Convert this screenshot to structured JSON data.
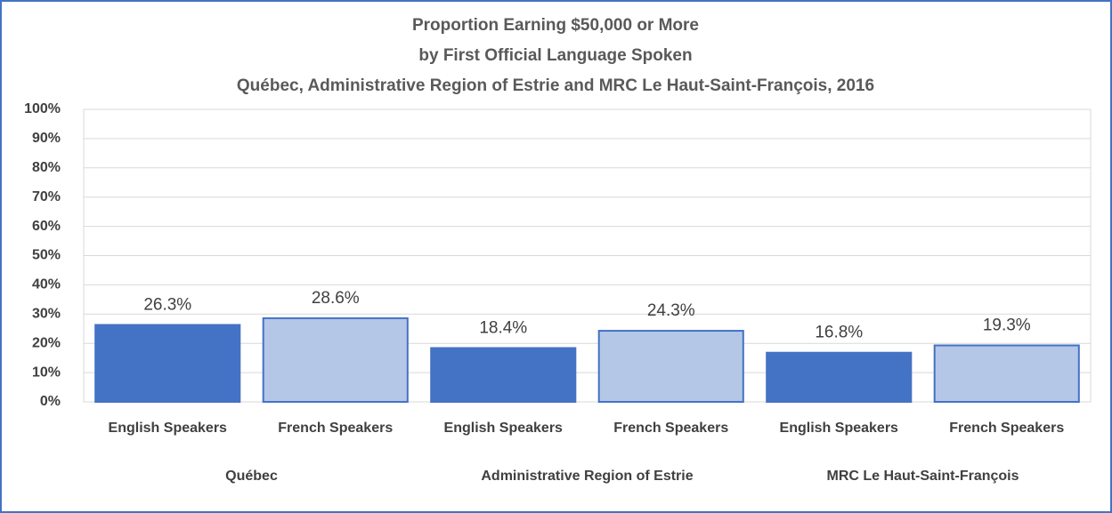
{
  "chart_data": {
    "type": "bar",
    "title": [
      "Proportion Earning $50,000 or More",
      "by First Official Language Spoken",
      "Québec, Administrative Region of Estrie and MRC Le Haut-Saint-François,  2016"
    ],
    "categories": [
      "English Speakers",
      "French Speakers",
      "English Speakers",
      "French Speakers",
      "English Speakers",
      "French Speakers"
    ],
    "groups": [
      "Québec",
      "Administrative  Region of Estrie",
      "MRC Le Haut-Saint-François"
    ],
    "values": [
      26.3,
      28.6,
      18.4,
      24.3,
      16.8,
      19.3
    ],
    "value_labels": [
      "26.3%",
      "28.6%",
      "18.4%",
      "24.3%",
      "16.8%",
      "19.3%"
    ],
    "colors": [
      "#4472c4",
      "#b4c7e7",
      "#4472c4",
      "#b4c7e7",
      "#4472c4",
      "#b4c7e7"
    ],
    "edgecolor": "#4472c4",
    "ylim": [
      0,
      100
    ],
    "yticks": [
      {
        "value": 0,
        "label": "0%"
      },
      {
        "value": 10,
        "label": "10%"
      },
      {
        "value": 20,
        "label": "20%"
      },
      {
        "value": 30,
        "label": "30%"
      },
      {
        "value": 40,
        "label": "40%"
      },
      {
        "value": 50,
        "label": "50%"
      },
      {
        "value": 60,
        "label": "60%"
      },
      {
        "value": 70,
        "label": "70%"
      },
      {
        "value": 80,
        "label": "80%"
      },
      {
        "value": 90,
        "label": "90%"
      },
      {
        "value": 100,
        "label": "100%"
      }
    ],
    "grid": true
  }
}
